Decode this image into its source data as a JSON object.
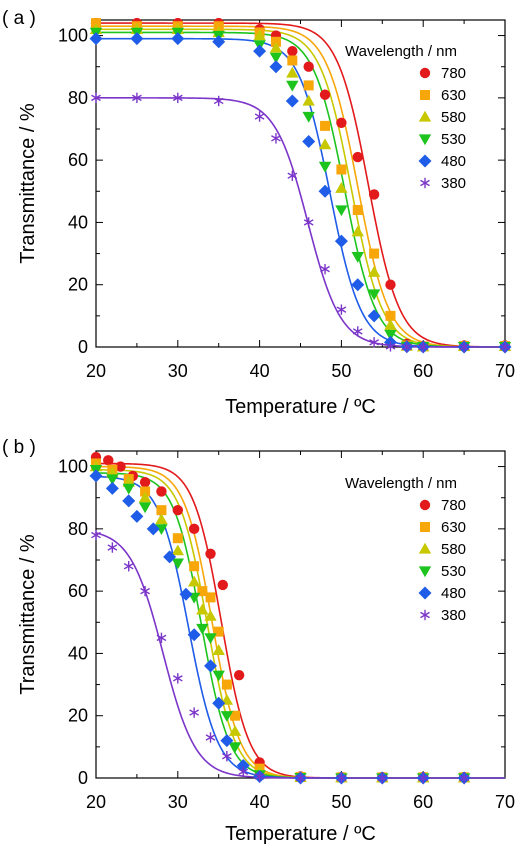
{
  "chart_data": [
    {
      "type": "scatter",
      "panel_label": "( a )",
      "xlabel": "Temperature / ºC",
      "ylabel": "Transmittance / %",
      "xlim": [
        20,
        70
      ],
      "ylim": [
        0,
        105
      ],
      "xticks": [
        20,
        30,
        40,
        50,
        60,
        70
      ],
      "yticks": [
        0,
        20,
        40,
        60,
        80,
        100
      ],
      "legend_title": "Wavelength / nm",
      "legend_position": "right",
      "grid": false,
      "fit_curves": true,
      "series": [
        {
          "name": "780",
          "color": "#e31a1c",
          "marker": "circle",
          "fit": {
            "top": 104,
            "t50": 53.3,
            "w": 1.9
          },
          "x": [
            20,
            25,
            30,
            35,
            40,
            42,
            44,
            46,
            48,
            50,
            52,
            54,
            56,
            58,
            60,
            65,
            70
          ],
          "y": [
            104,
            104,
            104,
            104,
            102,
            100,
            95,
            90,
            81,
            72,
            61,
            49,
            20,
            1,
            0.3,
            0.5,
            0.5
          ]
        },
        {
          "name": "630",
          "color": "#f7a70a",
          "marker": "square",
          "fit": {
            "top": 103,
            "t50": 52.0,
            "w": 1.9
          },
          "x": [
            20,
            25,
            30,
            35,
            40,
            42,
            44,
            46,
            48,
            50,
            52,
            54,
            56,
            58,
            60,
            65,
            70
          ],
          "y": [
            104,
            103,
            103,
            103,
            101,
            98,
            92,
            84,
            71,
            57,
            44,
            30,
            10,
            0.5,
            0.2,
            0.3,
            0.3
          ]
        },
        {
          "name": "580",
          "color": "#c8c800",
          "marker": "triangle-up",
          "fit": {
            "top": 102,
            "t50": 51.2,
            "w": 1.9
          },
          "x": [
            20,
            25,
            30,
            35,
            40,
            42,
            44,
            46,
            48,
            50,
            52,
            54,
            56,
            58,
            60,
            65,
            70
          ],
          "y": [
            102,
            102,
            102,
            101,
            100,
            96,
            88,
            79,
            65,
            51,
            37,
            24,
            7,
            0.3,
            0.1,
            0.2,
            0.2
          ]
        },
        {
          "name": "530",
          "color": "#1ec41e",
          "marker": "triangle-down",
          "fit": {
            "top": 101,
            "t50": 50.4,
            "w": 1.9
          },
          "x": [
            20,
            25,
            30,
            35,
            40,
            42,
            44,
            46,
            48,
            50,
            52,
            54,
            56,
            58,
            60,
            65,
            70
          ],
          "y": [
            101,
            101,
            101,
            100,
            97,
            93,
            84,
            74,
            58,
            44,
            29,
            17,
            4,
            0.2,
            0.1,
            0.1,
            0.1
          ]
        },
        {
          "name": "480",
          "color": "#1f5ce8",
          "marker": "diamond",
          "fit": {
            "top": 99,
            "t50": 48.6,
            "w": 1.9
          },
          "x": [
            20,
            25,
            30,
            35,
            40,
            42,
            44,
            46,
            48,
            50,
            52,
            54,
            56,
            58,
            60,
            65,
            70
          ],
          "y": [
            99,
            99,
            99,
            98,
            95,
            90,
            79,
            66,
            50,
            34,
            20,
            10,
            1.5,
            0.1,
            0,
            0,
            0
          ]
        },
        {
          "name": "380",
          "color": "#7b35c9",
          "marker": "asterisk",
          "fit": {
            "top": 80,
            "t50": 45.9,
            "w": 2.0
          },
          "x": [
            20,
            25,
            30,
            35,
            40,
            42,
            44,
            46,
            48,
            50,
            52,
            54,
            56,
            58,
            60,
            65,
            70
          ],
          "y": [
            80,
            80,
            80,
            79,
            74,
            67,
            55,
            40,
            25,
            12,
            5,
            1.5,
            0.2,
            0,
            0,
            0,
            0
          ]
        }
      ]
    },
    {
      "type": "scatter",
      "panel_label": "( b )",
      "xlabel": "Temperature / ºC",
      "ylabel": "Transmittance / %",
      "xlim": [
        20,
        70
      ],
      "ylim": [
        0,
        105
      ],
      "xticks": [
        20,
        30,
        40,
        50,
        60,
        70
      ],
      "yticks": [
        0,
        20,
        40,
        60,
        80,
        100
      ],
      "legend_title": "Wavelength / nm",
      "legend_position": "right",
      "grid": false,
      "fit_curves": true,
      "series": [
        {
          "name": "780",
          "color": "#e31a1c",
          "marker": "circle",
          "fit": {
            "top": 101,
            "t50": 35.3,
            "w": 1.7
          },
          "x": [
            20,
            21.5,
            23,
            24.5,
            26,
            28,
            30,
            32,
            34,
            35.5,
            37.5,
            40,
            45,
            50,
            55,
            60,
            65
          ],
          "y": [
            103,
            102,
            100,
            97,
            95,
            92,
            86,
            80,
            72,
            62,
            33,
            5,
            0.5,
            0.3,
            0.3,
            0.3,
            0.3
          ]
        },
        {
          "name": "630",
          "color": "#f7a70a",
          "marker": "square",
          "fit": {
            "top": 100,
            "t50": 34.2,
            "w": 1.7
          },
          "x": [
            20,
            22,
            24,
            26,
            28,
            30,
            32,
            33,
            34,
            35,
            36,
            37,
            40,
            45,
            50,
            55,
            60,
            65
          ],
          "y": [
            101,
            99,
            96,
            92,
            86,
            77,
            68,
            60,
            58,
            47,
            30,
            20,
            3,
            0.3,
            0.2,
            0.2,
            0.2,
            0.2
          ]
        },
        {
          "name": "580",
          "color": "#c8c800",
          "marker": "triangle-up",
          "fit": {
            "top": 99,
            "t50": 33.6,
            "w": 1.7
          },
          "x": [
            20,
            22,
            24,
            26,
            28,
            30,
            32,
            33,
            34,
            35,
            36,
            37,
            40,
            45,
            50,
            55,
            60,
            65
          ],
          "y": [
            100,
            98,
            95,
            90,
            83,
            73,
            63,
            54,
            52,
            41,
            25,
            15,
            2,
            0.2,
            0.1,
            0.1,
            0.1,
            0.1
          ]
        },
        {
          "name": "530",
          "color": "#1ec41e",
          "marker": "triangle-down",
          "fit": {
            "top": 98,
            "t50": 32.9,
            "w": 1.7
          },
          "x": [
            20,
            22,
            24,
            26,
            28,
            30,
            32,
            33,
            34,
            35,
            36,
            37,
            40,
            45,
            50,
            55,
            60,
            65
          ],
          "y": [
            99,
            96,
            93,
            87,
            80,
            69,
            58,
            48,
            45,
            33,
            20,
            10,
            1,
            0.1,
            0,
            0,
            0,
            0
          ]
        },
        {
          "name": "480",
          "color": "#1f5ce8",
          "marker": "diamond",
          "fit": {
            "top": 97,
            "t50": 31.3,
            "w": 1.8
          },
          "x": [
            20,
            22,
            24,
            25,
            27,
            29,
            31,
            32,
            34,
            35,
            36,
            38,
            40,
            45,
            50,
            55,
            60,
            65
          ],
          "y": [
            97,
            93,
            89,
            84,
            80,
            71,
            59,
            46,
            36,
            24,
            12,
            4,
            0.5,
            0,
            0,
            0,
            0,
            0
          ]
        },
        {
          "name": "380",
          "color": "#7b35c9",
          "marker": "asterisk",
          "fit": {
            "top": 80,
            "t50": 28.2,
            "w": 2.0
          },
          "x": [
            20,
            22,
            24,
            26,
            28,
            30,
            32,
            34,
            36,
            38,
            40,
            45,
            50,
            55,
            60,
            65
          ],
          "y": [
            78,
            74,
            68,
            60,
            45,
            32,
            21,
            13,
            7,
            2,
            0.5,
            0,
            0,
            0,
            0,
            0
          ]
        }
      ]
    }
  ]
}
